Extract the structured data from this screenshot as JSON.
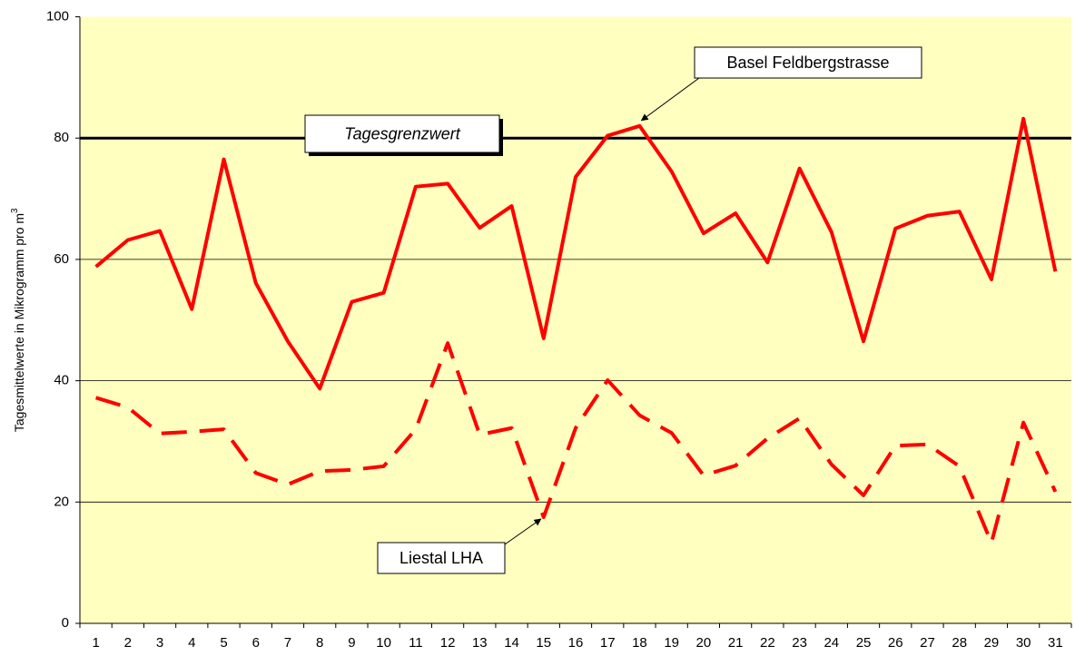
{
  "chart_data": {
    "type": "line",
    "y_label": "Tagesmittelwerte in Mikrogramm pro m",
    "y_label_superscript": "3",
    "categories": [
      "1",
      "2",
      "3",
      "4",
      "5",
      "6",
      "7",
      "8",
      "9",
      "10",
      "11",
      "12",
      "13",
      "14",
      "15",
      "16",
      "17",
      "18",
      "19",
      "20",
      "21",
      "22",
      "23",
      "24",
      "25",
      "26",
      "27",
      "28",
      "29",
      "30",
      "31"
    ],
    "series": [
      {
        "name": "Basel Feldbergstrasse",
        "color": "#ff0000",
        "dash": "solid",
        "values": [
          58.8,
          63.2,
          64.7,
          51.8,
          76.5,
          56.1,
          46.5,
          38.7,
          53,
          54.5,
          72,
          72.5,
          65.2,
          68.8,
          47,
          73.6,
          80.4,
          82,
          74.5,
          64.3,
          67.6,
          59.5,
          75,
          64.5,
          46.5,
          65.1,
          67.2,
          67.9,
          56.7,
          83.2,
          58
        ]
      },
      {
        "name": "Liestal LHA",
        "color": "#ff0000",
        "dash": "dashed",
        "values": [
          37.2,
          35.6,
          31.3,
          31.6,
          32,
          24.8,
          22.9,
          25.1,
          25.3,
          25.9,
          32,
          46.2,
          31.1,
          32.2,
          17.5,
          32.2,
          40.1,
          34.3,
          31.4,
          24.4,
          26,
          30.5,
          33.8,
          26.2,
          21.1,
          29.3,
          29.5,
          25.9,
          13.3,
          33.1,
          21.7
        ]
      }
    ],
    "threshold": {
      "value": 80,
      "label": "Tagesgrenzwert",
      "color": "#000000"
    },
    "ylim": [
      0,
      100
    ],
    "yticks": [
      0,
      20,
      40,
      60,
      80,
      100
    ],
    "grid": true,
    "background": "#ffffc0"
  }
}
